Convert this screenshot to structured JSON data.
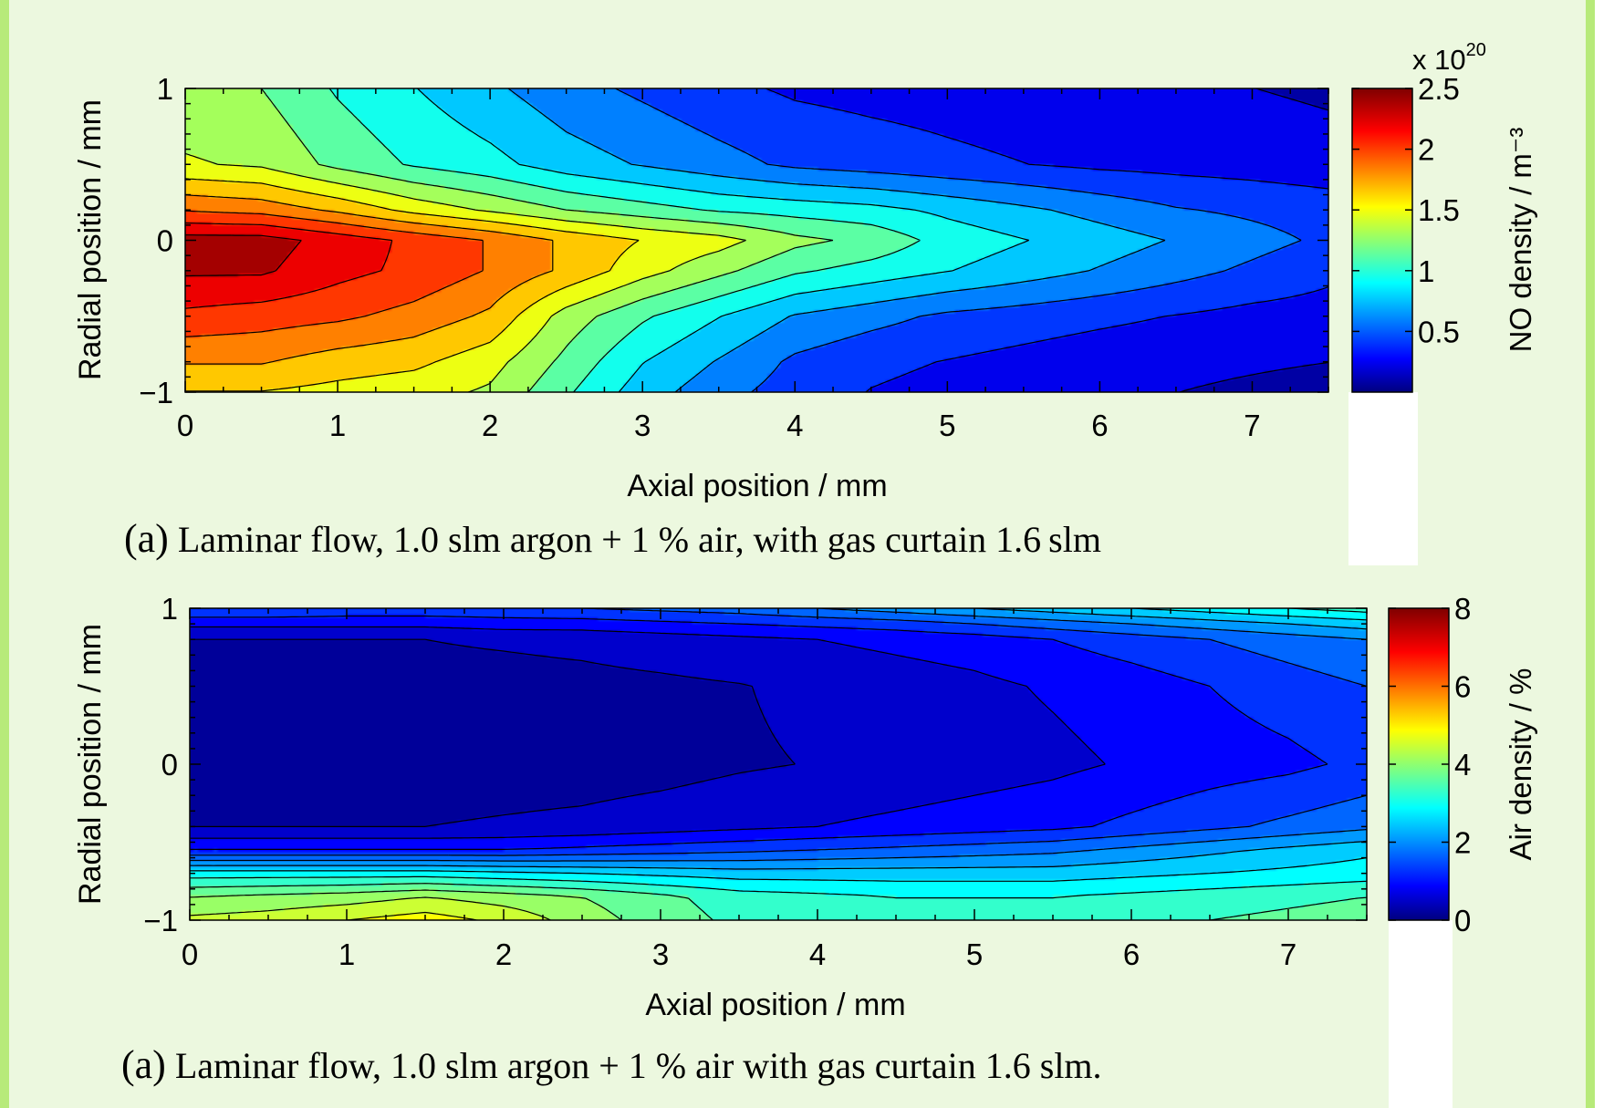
{
  "theme": {
    "background": "#ecf8df",
    "border": "#b7ea7a",
    "whiteout": "#ffffff"
  },
  "chart_data": [
    {
      "type": "heatmap",
      "title": "",
      "xlabel": "Axial position / mm",
      "ylabel": "Radial position / mm",
      "xlim": [
        0,
        7.5
      ],
      "ylim": [
        -1,
        1
      ],
      "x_ticks": [
        "0",
        "1",
        "2",
        "3",
        "4",
        "5",
        "6",
        "7"
      ],
      "y_ticks": [
        "1",
        "0",
        "−1"
      ],
      "colorbar": {
        "label": "NO density / m⁻³",
        "multiplier": "x 10",
        "multiplier_exponent": "20",
        "min": 0,
        "max": 2.5,
        "ticks": [
          "2.5",
          "2",
          "1.5",
          "1",
          "0.5"
        ],
        "colormap": "jet"
      },
      "contour_levels": 14,
      "x": [
        0,
        0.5,
        1,
        1.5,
        2,
        2.5,
        3,
        3.5,
        4,
        4.5,
        5,
        5.5,
        6,
        6.5,
        7,
        7.5
      ],
      "y": [
        1,
        0.5,
        0.2,
        0,
        -0.2,
        -0.5,
        -0.8,
        -1
      ],
      "z_units": "1e20 m^-3",
      "z": [
        [
          1.3,
          1.25,
          1.05,
          0.9,
          0.75,
          0.6,
          0.5,
          0.4,
          0.33,
          0.3,
          0.28,
          0.25,
          0.22,
          0.2,
          0.18,
          0.15
        ],
        [
          1.45,
          1.4,
          1.2,
          1.05,
          0.95,
          0.8,
          0.7,
          0.6,
          0.5,
          0.45,
          0.4,
          0.36,
          0.32,
          0.3,
          0.28,
          0.25
        ],
        [
          1.95,
          1.9,
          1.75,
          1.55,
          1.4,
          1.25,
          1.15,
          1.05,
          1.0,
          0.95,
          0.85,
          0.75,
          0.65,
          0.55,
          0.5,
          0.45
        ],
        [
          2.4,
          2.4,
          2.25,
          2.1,
          1.95,
          1.75,
          1.6,
          1.5,
          1.3,
          1.2,
          1.0,
          0.9,
          0.8,
          0.7,
          0.6,
          0.5
        ],
        [
          2.35,
          2.35,
          2.2,
          2.1,
          1.95,
          1.75,
          1.5,
          1.3,
          1.1,
          1.0,
          0.9,
          0.8,
          0.7,
          0.6,
          0.5,
          0.4
        ],
        [
          2.1,
          2.05,
          2.0,
          1.9,
          1.75,
          1.35,
          1.1,
          0.9,
          0.7,
          0.6,
          0.5,
          0.45,
          0.4,
          0.35,
          0.3,
          0.28
        ],
        [
          1.8,
          1.8,
          1.7,
          1.65,
          1.5,
          1.2,
          0.9,
          0.7,
          0.5,
          0.4,
          0.35,
          0.3,
          0.25,
          0.22,
          0.2,
          0.18
        ],
        [
          1.6,
          1.6,
          1.55,
          1.5,
          1.4,
          1.1,
          0.8,
          0.6,
          0.45,
          0.35,
          0.3,
          0.25,
          0.2,
          0.18,
          0.15,
          0.12
        ]
      ],
      "caption": {
        "number": "(a)",
        "text": "Laminar flow, 1.0 slm argon + 1 % air, with gas curtain 1.6 slm"
      }
    },
    {
      "type": "heatmap",
      "title": "",
      "xlabel": "Axial position / mm",
      "ylabel": "Radial position / mm",
      "xlim": [
        0,
        7.5
      ],
      "ylim": [
        -1,
        1
      ],
      "x_ticks": [
        "0",
        "1",
        "2",
        "3",
        "4",
        "5",
        "6",
        "7"
      ],
      "y_ticks": [
        "1",
        "0",
        "−1"
      ],
      "colorbar": {
        "label": "Air density / %",
        "min": 0,
        "max": 8,
        "ticks": [
          "8",
          "6",
          "4",
          "2",
          "0"
        ],
        "colormap": "jet"
      },
      "contour_levels": 20,
      "x": [
        0,
        0.5,
        1,
        1.5,
        2,
        2.5,
        3,
        3.5,
        4,
        4.5,
        5,
        5.5,
        6,
        6.5,
        7,
        7.5
      ],
      "y": [
        1,
        0.9,
        0.8,
        0.5,
        0,
        -0.4,
        -0.55,
        -0.7,
        -0.85,
        -1
      ],
      "z_units": "%",
      "z": [
        [
          1.6,
          1.6,
          1.5,
          1.5,
          1.5,
          1.6,
          1.7,
          1.8,
          2.0,
          2.2,
          2.4,
          2.6,
          2.8,
          3.0,
          3.2,
          3.4
        ],
        [
          0.9,
          0.9,
          0.9,
          0.9,
          1.0,
          1.0,
          1.1,
          1.2,
          1.3,
          1.4,
          1.6,
          1.8,
          2.0,
          2.2,
          2.4,
          2.6
        ],
        [
          0.4,
          0.4,
          0.4,
          0.4,
          0.45,
          0.5,
          0.6,
          0.7,
          0.8,
          0.9,
          1.0,
          1.2,
          1.4,
          1.6,
          1.8,
          2.0
        ],
        [
          0.25,
          0.25,
          0.25,
          0.25,
          0.25,
          0.28,
          0.32,
          0.38,
          0.5,
          0.6,
          0.7,
          0.85,
          1.0,
          1.2,
          1.4,
          1.6
        ],
        [
          0.15,
          0.15,
          0.15,
          0.15,
          0.18,
          0.2,
          0.25,
          0.35,
          0.42,
          0.5,
          0.6,
          0.7,
          0.85,
          1.0,
          1.1,
          1.3
        ],
        [
          0.4,
          0.4,
          0.4,
          0.4,
          0.45,
          0.5,
          0.6,
          0.7,
          0.8,
          0.9,
          1.0,
          1.1,
          1.3,
          1.5,
          1.7,
          1.9
        ],
        [
          1.2,
          1.2,
          1.2,
          1.2,
          1.2,
          1.3,
          1.4,
          1.5,
          1.6,
          1.7,
          1.8,
          1.9,
          2.1,
          2.3,
          2.5,
          2.7
        ],
        [
          3.0,
          3.0,
          3.0,
          3.0,
          2.9,
          2.8,
          2.7,
          2.6,
          2.6,
          2.6,
          2.6,
          2.6,
          2.7,
          2.8,
          2.9,
          3.0
        ],
        [
          4.0,
          4.1,
          4.2,
          4.4,
          4.2,
          4.0,
          3.7,
          3.4,
          3.3,
          3.2,
          3.2,
          3.2,
          3.3,
          3.4,
          3.5,
          3.6
        ],
        [
          4.5,
          4.6,
          4.8,
          5.0,
          4.7,
          4.2,
          3.8,
          3.5,
          3.4,
          3.3,
          3.3,
          3.3,
          3.4,
          3.6,
          3.7,
          3.8
        ]
      ],
      "caption": {
        "number": "(a)",
        "text": "Laminar flow, 1.0 slm argon + 1 % air with gas curtain 1.6 slm."
      }
    }
  ]
}
